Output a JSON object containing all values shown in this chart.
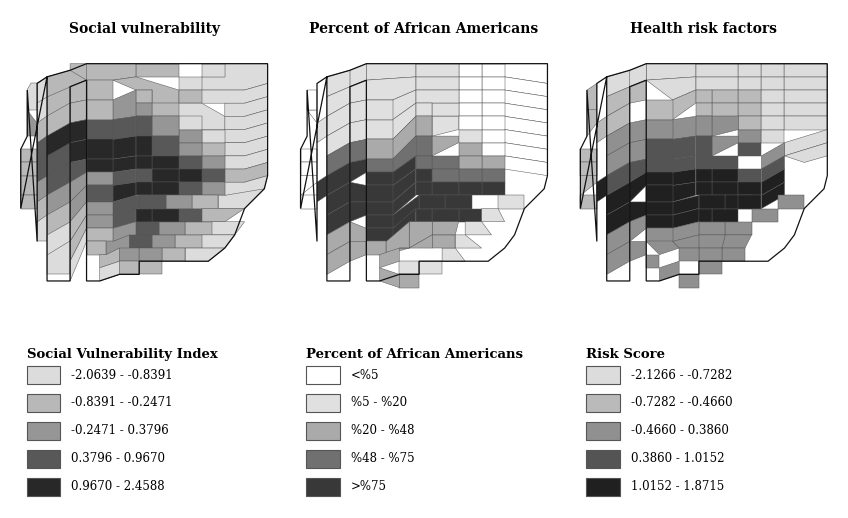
{
  "titles": [
    "Social vulnerability",
    "Percent of African Americans",
    "Health risk factors"
  ],
  "legend_titles": [
    "Social Vulnerability Index",
    "Percent of African Americans",
    "Risk Score"
  ],
  "legend1_colors": [
    "#dcdcdc",
    "#b8b8b8",
    "#969696",
    "#585858",
    "#282828"
  ],
  "legend1_labels": [
    "-2.0639 - -0.8391",
    "-0.8391 - -0.2471",
    "-0.2471 - 0.3796",
    "0.3796 - 0.9670",
    "0.9670 - 2.4588"
  ],
  "legend2_colors": [
    "#ffffff",
    "#e0e0e0",
    "#aaaaaa",
    "#707070",
    "#383838"
  ],
  "legend2_labels": [
    "<%5",
    "%5 - %20",
    "%20 - %48",
    "%48 - %75",
    ">%75"
  ],
  "legend3_colors": [
    "#dcdcdc",
    "#bababa",
    "#909090",
    "#545454",
    "#202020"
  ],
  "legend3_labels": [
    "-2.1266 - -0.7282",
    "-0.7282 - -0.4660",
    "-0.4660 - 0.3860",
    "0.3860 - 1.0152",
    "1.0152 - 1.8715"
  ],
  "bg_color": "#ffffff",
  "title_fontsize": 10,
  "legend_title_fontsize": 9.5,
  "legend_label_fontsize": 8.5
}
